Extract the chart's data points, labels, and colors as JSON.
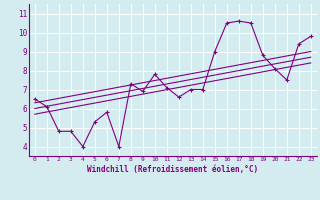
{
  "xlabel": "Windchill (Refroidissement éolien,°C)",
  "bg_color": "#d4ecef",
  "line_color": "#800080",
  "grid_color": "#ffffff",
  "xlim": [
    -0.5,
    23.5
  ],
  "ylim": [
    3.5,
    11.5
  ],
  "xticks": [
    0,
    1,
    2,
    3,
    4,
    5,
    6,
    7,
    8,
    9,
    10,
    11,
    12,
    13,
    14,
    15,
    16,
    17,
    18,
    19,
    20,
    21,
    22,
    23
  ],
  "yticks": [
    4,
    5,
    6,
    7,
    8,
    9,
    10,
    11
  ],
  "scatter_x": [
    0,
    1,
    2,
    3,
    4,
    5,
    6,
    7,
    8,
    9,
    10,
    11,
    12,
    13,
    14,
    15,
    16,
    17,
    18,
    19,
    20,
    21,
    22,
    23
  ],
  "scatter_y": [
    6.5,
    6.1,
    4.8,
    4.8,
    4.0,
    5.3,
    5.8,
    4.0,
    7.3,
    6.9,
    7.8,
    7.1,
    6.6,
    7.0,
    7.0,
    9.0,
    10.5,
    10.6,
    10.5,
    8.8,
    8.1,
    7.5,
    9.4,
    9.8
  ],
  "reg_lines": [
    {
      "x": [
        0,
        23
      ],
      "y": [
        6.3,
        9.0
      ]
    },
    {
      "x": [
        0,
        23
      ],
      "y": [
        6.0,
        8.7
      ]
    },
    {
      "x": [
        0,
        23
      ],
      "y": [
        5.7,
        8.4
      ]
    }
  ]
}
